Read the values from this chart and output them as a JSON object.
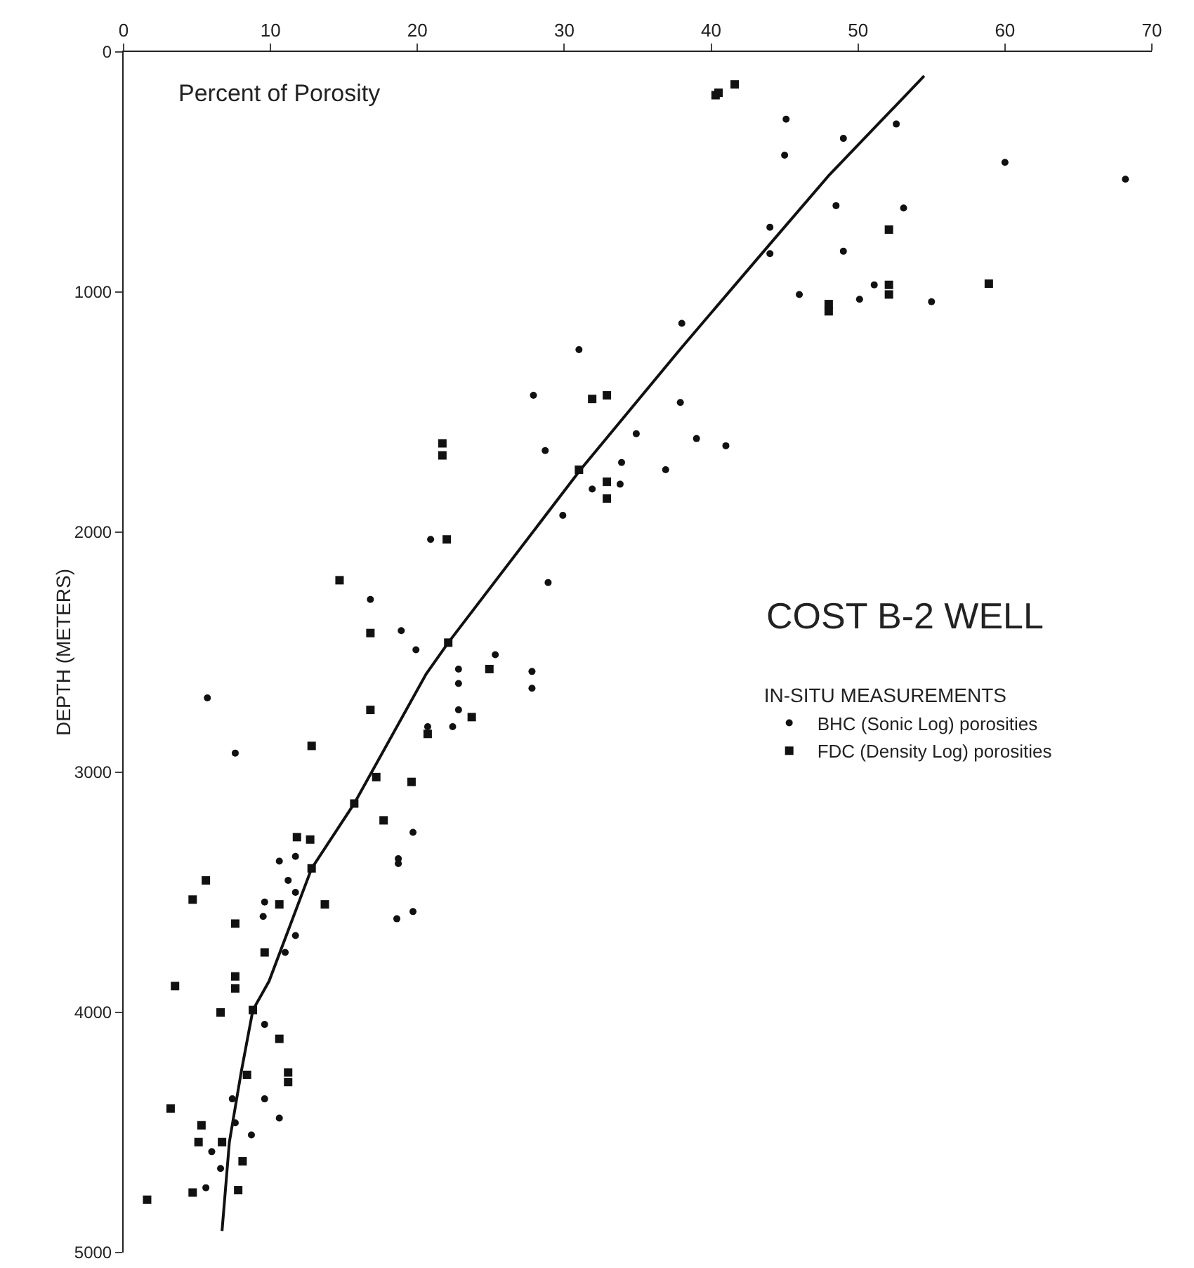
{
  "chart_data": {
    "type": "scatter",
    "title": "COST B-2 WELL",
    "legend_title": "IN-SITU MEASUREMENTS",
    "xlabel": "Percent of Porosity",
    "ylabel": "DEPTH (METERS)",
    "xlim": [
      0,
      70
    ],
    "xticks": [
      0,
      10,
      20,
      30,
      40,
      50,
      60,
      70
    ],
    "ylim": [
      5000,
      0
    ],
    "yticks": [
      0,
      1000,
      2000,
      3000,
      4000,
      5000
    ],
    "grid": false,
    "legend": "right",
    "series": [
      {
        "name": "BHC (Sonic Log) porosities",
        "color": "#111111",
        "marker": "circle",
        "x": [
          45.1,
          45.0,
          49.0,
          52.6,
          60.0,
          68.2,
          48.5,
          53.1,
          49.0,
          44.0,
          44.0,
          46.0,
          50.1,
          51.1,
          55.0,
          38.0,
          31.0,
          27.9,
          37.9,
          39.0,
          34.9,
          28.7,
          33.9,
          36.9,
          33.8,
          31.9,
          29.9,
          41.0,
          28.9,
          16.8,
          18.9,
          19.9,
          25.3,
          22.8,
          22.8,
          27.8,
          27.8,
          22.8,
          20.7,
          22.4,
          20.9,
          5.7,
          7.6,
          11.7,
          10.6,
          11.2,
          11.7,
          9.6,
          9.5,
          11.7,
          11.0,
          19.7,
          18.7,
          18.7,
          19.7,
          18.6,
          9.6,
          9.6,
          10.6,
          8.7,
          6.0,
          5.6,
          6.6,
          7.6,
          7.4
        ],
        "values": [
          280,
          430,
          360,
          300,
          460,
          530,
          640,
          650,
          830,
          730,
          840,
          1010,
          1030,
          970,
          1040,
          1130,
          1240,
          1430,
          1460,
          1610,
          1590,
          1660,
          1710,
          1740,
          1800,
          1820,
          1930,
          1640,
          2210,
          2280,
          2410,
          2490,
          2510,
          2570,
          2630,
          2580,
          2650,
          2740,
          2810,
          2810,
          2030,
          2690,
          2920,
          3350,
          3370,
          3450,
          3500,
          3540,
          3600,
          3680,
          3750,
          3250,
          3360,
          3380,
          3580,
          3610,
          4050,
          4360,
          4440,
          4510,
          4580,
          4730,
          4650,
          4460,
          4360
        ]
      },
      {
        "name": "FDC (Density Log) porosities",
        "color": "#111111",
        "marker": "square",
        "x": [
          40.3,
          40.5,
          41.6,
          52.1,
          48.0,
          48.0,
          52.1,
          52.1,
          58.9,
          31.9,
          32.9,
          21.7,
          21.7,
          22.0,
          14.7,
          16.8,
          22.1,
          24.9,
          16.8,
          23.7,
          32.9,
          32.9,
          31.0,
          20.7,
          12.8,
          17.2,
          19.6,
          15.7,
          17.7,
          12.7,
          11.8,
          12.8,
          5.6,
          4.7,
          7.6,
          10.6,
          13.7,
          9.6,
          3.5,
          7.6,
          7.6,
          6.6,
          8.8,
          10.6,
          11.2,
          11.2,
          8.4,
          3.2,
          5.1,
          5.3,
          4.7,
          1.6,
          7.8,
          8.1,
          6.7
        ],
        "values": [
          180,
          170,
          135,
          740,
          1050,
          1080,
          970,
          1010,
          965,
          1445,
          1430,
          1630,
          1680,
          2030,
          2200,
          2420,
          2460,
          2570,
          2740,
          2770,
          1860,
          1790,
          1740,
          2840,
          2890,
          3020,
          3040,
          3130,
          3200,
          3280,
          3270,
          3400,
          3450,
          3530,
          3630,
          3550,
          3550,
          3750,
          3890,
          3850,
          3900,
          4000,
          3990,
          4110,
          4250,
          4290,
          4260,
          4400,
          4540,
          4470,
          4750,
          4780,
          4740,
          4620,
          4540
        ]
      },
      {
        "type": "line",
        "color": "#111111",
        "line_style": "solid",
        "x": [
          6.7,
          7.2,
          8.0,
          8.8,
          9.9,
          12.8,
          15.7,
          20.6,
          22.1,
          31.1,
          38.0,
          44.0,
          48.0,
          54.5
        ],
        "values": [
          4910,
          4540,
          4250,
          3990,
          3870,
          3400,
          3130,
          2590,
          2460,
          1740,
          1230,
          800,
          515,
          100
        ]
      }
    ]
  }
}
